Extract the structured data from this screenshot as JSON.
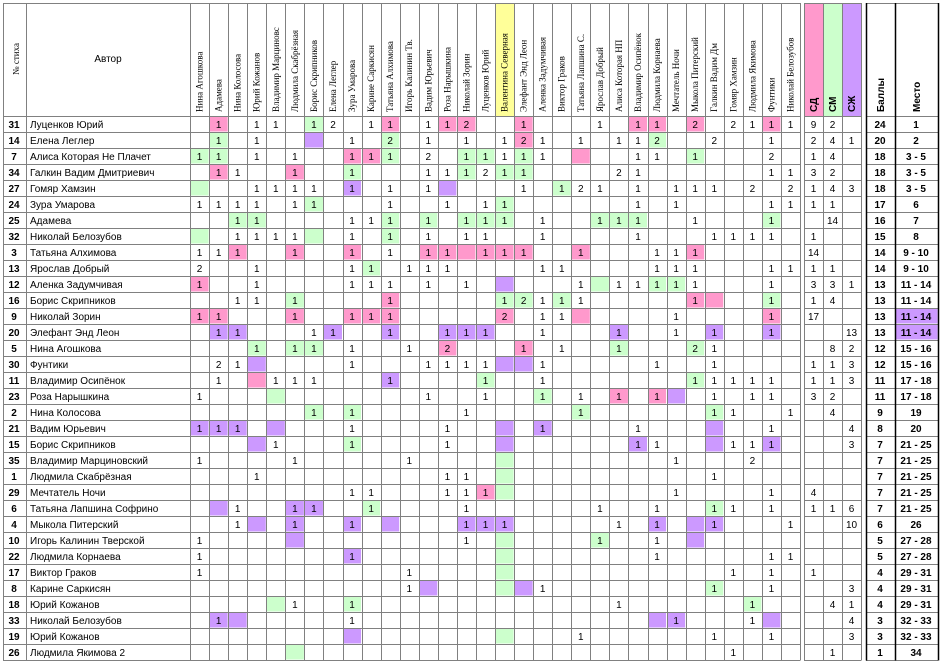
{
  "header": {
    "num": "№ стиха",
    "author": "Автор",
    "score": "Баллы",
    "place": "Место"
  },
  "judges": [
    "Нина Агошкова",
    "Адамева",
    "Нина Колосова",
    "Юрий Кожанов",
    "Владимир Марциновс",
    "Людмила Скабрёзная",
    "Борис Скрипников",
    "Елена Леглер",
    "Зура Умарова",
    "Карине Саркисян",
    "Татьяна Алхимова",
    "Игорь Калинин Тв.",
    "Вадим Юрьевич",
    "Роза Нарышкина",
    "Николай Зорин",
    "Луценков Юрий",
    "Валентина Северная",
    "Элефант Энд Леон",
    "Аленка Задумчивая",
    "Виктор Граков",
    "Татьяна Лапшина С.",
    "Ярослав Добрый",
    "Алиса Которая НП",
    "Владимир Осипёнок",
    "Людмила Корнаева",
    "Мечтатель Ночи",
    "Мыкола Питерский",
    "Галкин Вадим Дм",
    "Гомяр Хамзин",
    "Людмила Якимова",
    "Фунтики",
    "Николай Белозубов"
  ],
  "summary_headers": [
    "СД",
    "СМ",
    "СЖ"
  ],
  "colors": {
    "green": "#ccffcc",
    "pink": "#ff99cc",
    "purple": "#cc99ff",
    "yellow": "#ffff99",
    "orange": "#c85a00",
    "grid": "#808080"
  },
  "rows": [
    {
      "n": "31",
      "author": "Луценков Юрий",
      "v": {
        "1": "1",
        "3": "1",
        "4": "1",
        "6": "1",
        "7": "2",
        "9": "1",
        "10": "1",
        "12": "1",
        "13": "1",
        "14": "2",
        "17": "1",
        "21": "1",
        "23": "1",
        "24": "1",
        "26": "2",
        "28": "2",
        "29": "1",
        "30": "1",
        "31": "1"
      },
      "c": {
        "1": "p",
        "6": "g",
        "10": "p",
        "13": "p",
        "14": "p",
        "17": "p",
        "23": "p",
        "24": "p",
        "26": "p",
        "30": "p"
      },
      "sd": "9",
      "sm": "2",
      "sj": "",
      "score": "24",
      "place": "1",
      "hl": "o"
    },
    {
      "n": "14",
      "author": "Елена Леглер",
      "v": {
        "1": "1",
        "3": "1",
        "8": "1",
        "10": "2",
        "12": "1",
        "14": "1",
        "16": "1",
        "17": "2",
        "18": "1",
        "20": "1",
        "22": "1",
        "23": "1",
        "24": "2",
        "27": "2",
        "30": "1"
      },
      "c": {
        "1": "g",
        "6": "u",
        "10": "g",
        "17": "p",
        "24": "g"
      },
      "sd": "2",
      "sm": "4",
      "sj": "1",
      "score": "20",
      "place": "2",
      "hl": "o"
    },
    {
      "n": "7",
      "author": "Алиса Которая Не Плачет",
      "v": {
        "0": "1",
        "1": "1",
        "3": "1",
        "5": "1",
        "8": "1",
        "9": "1",
        "10": "1",
        "12": "2",
        "14": "1",
        "15": "1",
        "16": "1",
        "17": "1",
        "18": "1",
        "23": "1",
        "24": "1",
        "26": "1",
        "30": "2"
      },
      "c": {
        "0": "g",
        "1": "g",
        "8": "p",
        "9": "p",
        "10": "g",
        "14": "g",
        "15": "g",
        "17": "g",
        "20": "p",
        "26": "g"
      },
      "sd": "1",
      "sm": "4",
      "sj": "",
      "score": "18",
      "place": "3 - 5",
      "hl": "o"
    },
    {
      "n": "34",
      "author": "Галкин Вадим Дмитриевич",
      "v": {
        "1": "1",
        "2": "1",
        "5": "1",
        "8": "1",
        "12": "1",
        "13": "1",
        "14": "1",
        "15": "2",
        "16": "1",
        "17": "1",
        "22": "2",
        "23": "1",
        "30": "1",
        "31": "1"
      },
      "c": {
        "1": "p",
        "5": "p",
        "8": "g",
        "14": "g",
        "16": "g",
        "17": "g"
      },
      "sd": "3",
      "sm": "2",
      "sj": "",
      "score": "18",
      "place": "3 - 5",
      "hl": "o"
    },
    {
      "n": "27",
      "author": "Гомяр Хамзин",
      "v": {
        "3": "1",
        "4": "1",
        "5": "1",
        "6": "1",
        "8": "1",
        "10": "1",
        "12": "1",
        "17": "1",
        "19": "1",
        "20": "2",
        "21": "1",
        "23": "1",
        "25": "1",
        "26": "1",
        "27": "1",
        "29": "2",
        "31": "2"
      },
      "c": {
        "0": "g",
        "8": "u",
        "13": "u",
        "19": "g"
      },
      "sd": "1",
      "sm": "4",
      "sj": "3",
      "score": "18",
      "place": "3 - 5",
      "hl": "o"
    },
    {
      "n": "24",
      "author": "Зура Умарова",
      "v": {
        "0": "1",
        "1": "1",
        "2": "1",
        "3": "1",
        "5": "1",
        "6": "1",
        "10": "1",
        "13": "1",
        "15": "1",
        "16": "1",
        "23": "1",
        "25": "1",
        "30": "1",
        "31": "1"
      },
      "c": {
        "6": "g",
        "16": "g"
      },
      "sd": "1",
      "sm": "1",
      "sj": "",
      "score": "17",
      "place": "6",
      "hl": ""
    },
    {
      "n": "25",
      "author": "Адамева",
      "v": {
        "2": "1",
        "3": "1",
        "8": "1",
        "9": "1",
        "10": "1",
        "12": "1",
        "14": "1",
        "15": "1",
        "16": "1",
        "18": "1",
        "21": "1",
        "22": "1",
        "23": "1",
        "26": "1",
        "30": "1"
      },
      "c": {
        "2": "g",
        "3": "g",
        "10": "g",
        "12": "g",
        "14": "g",
        "15": "g",
        "16": "g",
        "21": "g",
        "22": "g",
        "23": "g",
        "30": "g"
      },
      "sd": "",
      "sm": "14",
      "sj": "",
      "score": "16",
      "place": "7",
      "hl": ""
    },
    {
      "n": "32",
      "author": "Николай Белозубов",
      "v": {
        "2": "1",
        "3": "1",
        "4": "1",
        "5": "1",
        "8": "1",
        "10": "1",
        "12": "1",
        "14": "1",
        "15": "1",
        "18": "1",
        "23": "1",
        "27": "1",
        "28": "1",
        "29": "1",
        "30": "1"
      },
      "c": {
        "0": "g",
        "6": "g",
        "10": "g"
      },
      "sd": "1",
      "sm": "",
      "sj": "",
      "score": "15",
      "place": "8",
      "hl": ""
    },
    {
      "n": "3",
      "author": "Татьяна Алхимова",
      "v": {
        "0": "1",
        "1": "1",
        "2": "1",
        "5": "1",
        "8": "1",
        "10": "1",
        "12": "1",
        "13": "1",
        "15": "1",
        "16": "1",
        "17": "1",
        "20": "1",
        "24": "1",
        "25": "1",
        "26": "1"
      },
      "c": {
        "2": "p",
        "5": "p",
        "8": "p",
        "12": "p",
        "13": "p",
        "14": "p",
        "15": "p",
        "16": "p",
        "17": "p",
        "20": "p",
        "26": "p"
      },
      "sd": "14",
      "sm": "",
      "sj": "",
      "score": "14",
      "place": "9 - 10",
      "hl": ""
    },
    {
      "n": "13",
      "author": "Ярослав Добрый",
      "v": {
        "0": "2",
        "3": "1",
        "8": "1",
        "9": "1",
        "11": "1",
        "12": "1",
        "13": "1",
        "18": "1",
        "19": "1",
        "24": "1",
        "25": "1",
        "26": "1",
        "30": "1",
        "31": "1"
      },
      "c": {
        "9": "g"
      },
      "sd": "1",
      "sm": "1",
      "sj": "",
      "score": "14",
      "place": "9 - 10",
      "hl": ""
    },
    {
      "n": "12",
      "author": "Аленка Задумчивая",
      "v": {
        "0": "1",
        "3": "1",
        "8": "1",
        "9": "1",
        "10": "1",
        "12": "1",
        "14": "1",
        "20": "1",
        "22": "1",
        "23": "1",
        "24": "1",
        "25": "1",
        "26": "1",
        "30": "1"
      },
      "c": {
        "0": "p",
        "16": "u",
        "21": "g",
        "24": "g",
        "25": "g"
      },
      "sd": "3",
      "sm": "3",
      "sj": "1",
      "score": "13",
      "place": "11 - 14",
      "hl": ""
    },
    {
      "n": "16",
      "author": "Борис Скрипников",
      "v": {
        "2": "1",
        "3": "1",
        "5": "1",
        "10": "1",
        "16": "1",
        "17": "2",
        "18": "1",
        "19": "1",
        "20": "1",
        "26": "1",
        "30": "1"
      },
      "c": {
        "5": "g",
        "10": "p",
        "16": "g",
        "17": "g",
        "19": "g",
        "26": "p",
        "27": "p",
        "30": "g"
      },
      "sd": "1",
      "sm": "4",
      "sj": "",
      "score": "13",
      "place": "11 - 14",
      "hl": ""
    },
    {
      "n": "9",
      "author": "Николай Зорин",
      "v": {
        "0": "1",
        "1": "1",
        "5": "1",
        "8": "1",
        "9": "1",
        "10": "1",
        "16": "2",
        "18": "1",
        "19": "1",
        "25": "1",
        "30": "1"
      },
      "c": {
        "0": "p",
        "1": "p",
        "5": "p",
        "8": "p",
        "9": "p",
        "10": "p",
        "16": "p",
        "20": "p",
        "30": "p"
      },
      "sd": "17",
      "sm": "",
      "sj": "",
      "score": "13",
      "place": "11 - 14",
      "hl": "d"
    },
    {
      "n": "20",
      "author": "Элефант Энд Леон",
      "v": {
        "1": "1",
        "2": "1",
        "6": "1",
        "7": "1",
        "10": "1",
        "13": "1",
        "14": "1",
        "15": "1",
        "18": "1",
        "22": "1",
        "25": "1",
        "27": "1",
        "30": "1"
      },
      "c": {
        "1": "u",
        "2": "u",
        "7": "u",
        "10": "u",
        "13": "u",
        "14": "u",
        "15": "u",
        "22": "u",
        "27": "u",
        "30": "u"
      },
      "sd": "",
      "sm": "",
      "sj": "13",
      "score": "13",
      "place": "11 - 14",
      "hl": "d"
    },
    {
      "n": "5",
      "author": "Нина Агошкова",
      "v": {
        "3": "1",
        "5": "1",
        "6": "1",
        "8": "1",
        "11": "1",
        "13": "2",
        "17": "1",
        "19": "1",
        "22": "1",
        "26": "2",
        "27": "1"
      },
      "c": {
        "3": "g",
        "5": "g",
        "6": "g",
        "13": "p",
        "17": "p",
        "22": "g",
        "26": "g"
      },
      "sd": "",
      "sm": "8",
      "sj": "2",
      "score": "12",
      "place": "15 - 16",
      "hl": ""
    },
    {
      "n": "30",
      "author": "Фунтики",
      "v": {
        "1": "2",
        "2": "1",
        "8": "1",
        "12": "1",
        "13": "1",
        "14": "1",
        "15": "1",
        "18": "1",
        "24": "1",
        "27": "1"
      },
      "c": {
        "3": "u",
        "16": "u",
        "17": "u"
      },
      "sd": "1",
      "sm": "1",
      "sj": "3",
      "score": "12",
      "place": "15 - 16",
      "hl": ""
    },
    {
      "n": "11",
      "author": "Владимир Осипёнок",
      "v": {
        "1": "1",
        "4": "1",
        "5": "1",
        "6": "1",
        "10": "1",
        "15": "1",
        "18": "1",
        "26": "1",
        "27": "1",
        "28": "1",
        "29": "1",
        "30": "1"
      },
      "c": {
        "3": "p",
        "10": "u",
        "15": "g",
        "26": "g"
      },
      "sd": "1",
      "sm": "1",
      "sj": "3",
      "score": "11",
      "place": "17 - 18",
      "hl": ""
    },
    {
      "n": "23",
      "author": "Роза Нарышкина",
      "v": {
        "0": "1",
        "12": "1",
        "15": "1",
        "18": "1",
        "20": "1",
        "22": "1",
        "24": "1",
        "27": "1",
        "29": "1",
        "30": "1"
      },
      "c": {
        "4": "g",
        "18": "g",
        "22": "p",
        "24": "p",
        "25": "u"
      },
      "sd": "3",
      "sm": "2",
      "sj": "",
      "score": "11",
      "place": "17 - 18",
      "hl": ""
    },
    {
      "n": "2",
      "author": "Нина Колосова",
      "v": {
        "6": "1",
        "8": "1",
        "14": "1",
        "20": "1",
        "27": "1",
        "28": "1",
        "31": "1"
      },
      "c": {
        "6": "g",
        "8": "g",
        "20": "g",
        "27": "g"
      },
      "sd": "",
      "sm": "4",
      "sj": "",
      "score": "9",
      "place": "19",
      "hl": ""
    },
    {
      "n": "21",
      "author": "Вадим Юрьевич",
      "v": {
        "0": "1",
        "1": "1",
        "2": "1",
        "8": "1",
        "13": "1",
        "18": "1",
        "23": "1",
        "30": "1"
      },
      "c": {
        "0": "u",
        "1": "u",
        "2": "u",
        "4": "u",
        "16": "u",
        "18": "u",
        "27": "u"
      },
      "sd": "",
      "sm": "",
      "sj": "4",
      "score": "8",
      "place": "20",
      "hl": ""
    },
    {
      "n": "15",
      "author": "Борис Скрипников",
      "v": {
        "4": "1",
        "8": "1",
        "13": "1",
        "23": "1",
        "24": "1",
        "28": "1",
        "29": "1",
        "30": "1"
      },
      "c": {
        "3": "u",
        "8": "g",
        "16": "u",
        "23": "u",
        "27": "u",
        "30": "u"
      },
      "sd": "",
      "sm": "",
      "sj": "3",
      "score": "7",
      "place": "21 - 25",
      "hl": ""
    },
    {
      "n": "35",
      "author": "Владимир Марциновский",
      "v": {
        "0": "1",
        "5": "1",
        "11": "1",
        "25": "1",
        "29": "2"
      },
      "c": {
        "16": "g"
      },
      "sd": "",
      "sm": "",
      "sj": "",
      "score": "7",
      "place": "21 - 25",
      "hl": ""
    },
    {
      "n": "1",
      "author": "Людмила Скабрёзная",
      "v": {
        "3": "1",
        "13": "1",
        "14": "1",
        "27": "1"
      },
      "c": {
        "16": "g"
      },
      "sd": "",
      "sm": "",
      "sj": "",
      "score": "7",
      "place": "21 - 25",
      "hl": ""
    },
    {
      "n": "29",
      "author": "Мечтатель Ночи",
      "v": {
        "8": "1",
        "9": "1",
        "13": "1",
        "14": "1",
        "15": "1",
        "25": "1",
        "30": "1"
      },
      "c": {
        "15": "p",
        "16": "g"
      },
      "sd": "4",
      "sm": "",
      "sj": "",
      "score": "7",
      "place": "21 - 25",
      "hl": ""
    },
    {
      "n": "6",
      "author": "Татьяна Лапшина Софрино",
      "v": {
        "2": "1",
        "5": "1",
        "6": "1",
        "9": "1",
        "14": "1",
        "21": "1",
        "24": "1",
        "27": "1",
        "28": "1",
        "30": "1"
      },
      "c": {
        "1": "u",
        "5": "u",
        "6": "u",
        "9": "g",
        "27": "g"
      },
      "sd": "1",
      "sm": "1",
      "sj": "6",
      "score": "7",
      "place": "21 - 25",
      "hl": ""
    },
    {
      "n": "4",
      "author": "Мыкола Питерский",
      "v": {
        "2": "1",
        "5": "1",
        "8": "1",
        "14": "1",
        "15": "1",
        "16": "1",
        "22": "1",
        "24": "1",
        "27": "1",
        "31": "1"
      },
      "c": {
        "3": "u",
        "5": "u",
        "8": "u",
        "10": "u",
        "14": "u",
        "15": "u",
        "16": "u",
        "24": "u",
        "26": "u",
        "27": "u"
      },
      "sd": "",
      "sm": "",
      "sj": "10",
      "score": "6",
      "place": "26",
      "hl": ""
    },
    {
      "n": "10",
      "author": "Игорь Калинин Тверской",
      "v": {
        "0": "1",
        "14": "1",
        "21": "1",
        "24": "1"
      },
      "c": {
        "5": "u",
        "16": "g",
        "21": "g",
        "26": "u"
      },
      "sd": "",
      "sm": "",
      "sj": "",
      "score": "5",
      "place": "27 - 28",
      "hl": ""
    },
    {
      "n": "22",
      "author": "Людмила Корнаева",
      "v": {
        "0": "1",
        "8": "1",
        "24": "1",
        "30": "1",
        "31": "1"
      },
      "c": {
        "8": "u",
        "16": "g"
      },
      "sd": "",
      "sm": "",
      "sj": "",
      "score": "5",
      "place": "27 - 28",
      "hl": ""
    },
    {
      "n": "17",
      "author": "Виктор Граков",
      "v": {
        "0": "1",
        "11": "1",
        "28": "1",
        "30": "1"
      },
      "c": {
        "16": "g"
      },
      "sd": "1",
      "sm": "",
      "sj": "",
      "score": "4",
      "place": "29 - 31",
      "hl": ""
    },
    {
      "n": "8",
      "author": "Карине Саркисян",
      "v": {
        "11": "1",
        "18": "1",
        "27": "1",
        "30": "1"
      },
      "c": {
        "12": "u",
        "16": "g",
        "17": "u",
        "27": "g"
      },
      "sd": "",
      "sm": "",
      "sj": "3",
      "score": "4",
      "place": "29 - 31",
      "hl": ""
    },
    {
      "n": "18",
      "author": "Юрий Кожанов",
      "v": {
        "5": "1",
        "8": "1",
        "22": "1",
        "29": "1"
      },
      "c": {
        "4": "g",
        "8": "g",
        "29": "g"
      },
      "sd": "",
      "sm": "4",
      "sj": "1",
      "score": "4",
      "place": "29 - 31",
      "hl": ""
    },
    {
      "n": "33",
      "author": "Николай Белозубов",
      "v": {
        "1": "1",
        "8": "1",
        "25": "1",
        "29": "1"
      },
      "c": {
        "1": "u",
        "2": "u",
        "24": "u",
        "25": "u",
        "30": "u"
      },
      "sd": "",
      "sm": "",
      "sj": "4",
      "score": "3",
      "place": "32 - 33",
      "hl": ""
    },
    {
      "n": "19",
      "author": "Юрий Кожанов",
      "v": {
        "20": "1",
        "27": "1",
        "30": "1"
      },
      "c": {
        "8": "u",
        "16": "g"
      },
      "sd": "",
      "sm": "",
      "sj": "3",
      "score": "3",
      "place": "32 - 33",
      "hl": ""
    },
    {
      "n": "26",
      "author": "Людмила Якимова 2",
      "v": {
        "28": "1"
      },
      "c": {
        "5": "g"
      },
      "sd": "",
      "sm": "1",
      "sj": "",
      "score": "1",
      "place": "34",
      "hl": ""
    }
  ]
}
